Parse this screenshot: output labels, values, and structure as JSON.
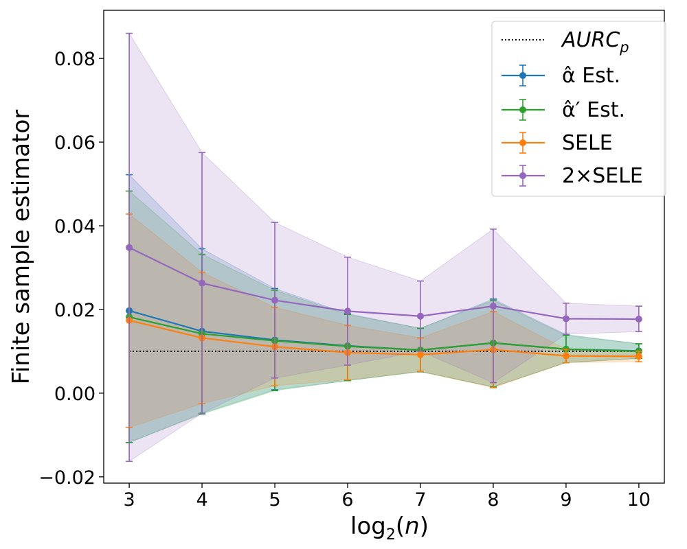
{
  "chart_data": {
    "type": "line",
    "title": "",
    "xlabel": "log₂(n)",
    "ylabel": "Finite sample estimator",
    "xlim": [
      2.65,
      10.35
    ],
    "ylim": [
      -0.0215,
      0.0915
    ],
    "x": [
      3,
      4,
      5,
      6,
      7,
      8,
      9,
      10
    ],
    "xticks": [
      3,
      4,
      5,
      6,
      7,
      8,
      9,
      10
    ],
    "yticks": [
      -0.02,
      0.0,
      0.02,
      0.04,
      0.06,
      0.08
    ],
    "ytick_labels": [
      "−0.02",
      "0.00",
      "0.02",
      "0.04",
      "0.06",
      "0.08"
    ],
    "grid": false,
    "legend_position": "top-right",
    "reference_line": {
      "name": "AURC",
      "subscript": "p",
      "value": 0.01,
      "color": "#000000",
      "style": "dotted"
    },
    "series": [
      {
        "name": "α̂ Est.",
        "color": "#1f77b4",
        "values": [
          0.0197,
          0.0148,
          0.0127,
          0.0113,
          0.0103,
          0.012,
          0.0105,
          0.0101
        ],
        "upper": [
          0.0522,
          0.0345,
          0.025,
          0.019,
          0.0155,
          0.0225,
          0.014,
          0.0118
        ],
        "lower": [
          -0.0118,
          -0.0048,
          0.0008,
          0.003,
          0.0052,
          0.0015,
          0.0073,
          0.0083
        ]
      },
      {
        "name": "α̂′ Est.",
        "color": "#2ca02c",
        "values": [
          0.0182,
          0.0142,
          0.0125,
          0.0112,
          0.0103,
          0.012,
          0.0105,
          0.01
        ],
        "upper": [
          0.0483,
          0.0332,
          0.0246,
          0.0188,
          0.0155,
          0.0222,
          0.0138,
          0.0118
        ],
        "lower": [
          -0.0118,
          -0.005,
          0.0006,
          0.003,
          0.0051,
          0.0015,
          0.0073,
          0.0083
        ]
      },
      {
        "name": "SELE",
        "color": "#ff7f0e",
        "values": [
          0.0174,
          0.0132,
          0.0111,
          0.0097,
          0.0092,
          0.0104,
          0.0089,
          0.0088
        ],
        "upper": [
          0.0428,
          0.0289,
          0.0205,
          0.0162,
          0.0132,
          0.0195,
          0.0105,
          0.01
        ],
        "lower": [
          -0.0082,
          -0.0025,
          0.0018,
          0.0032,
          0.0052,
          0.0013,
          0.0073,
          0.0075
        ]
      },
      {
        "name": "2×SELE",
        "color": "#9467bd",
        "values": [
          0.0348,
          0.0263,
          0.0222,
          0.0196,
          0.0184,
          0.0208,
          0.0178,
          0.0177
        ],
        "upper": [
          0.086,
          0.0575,
          0.0408,
          0.0325,
          0.0268,
          0.0392,
          0.0215,
          0.0208
        ],
        "lower": [
          -0.0163,
          -0.0048,
          0.0036,
          0.0067,
          0.01,
          0.0025,
          0.0141,
          0.0147
        ]
      }
    ]
  }
}
